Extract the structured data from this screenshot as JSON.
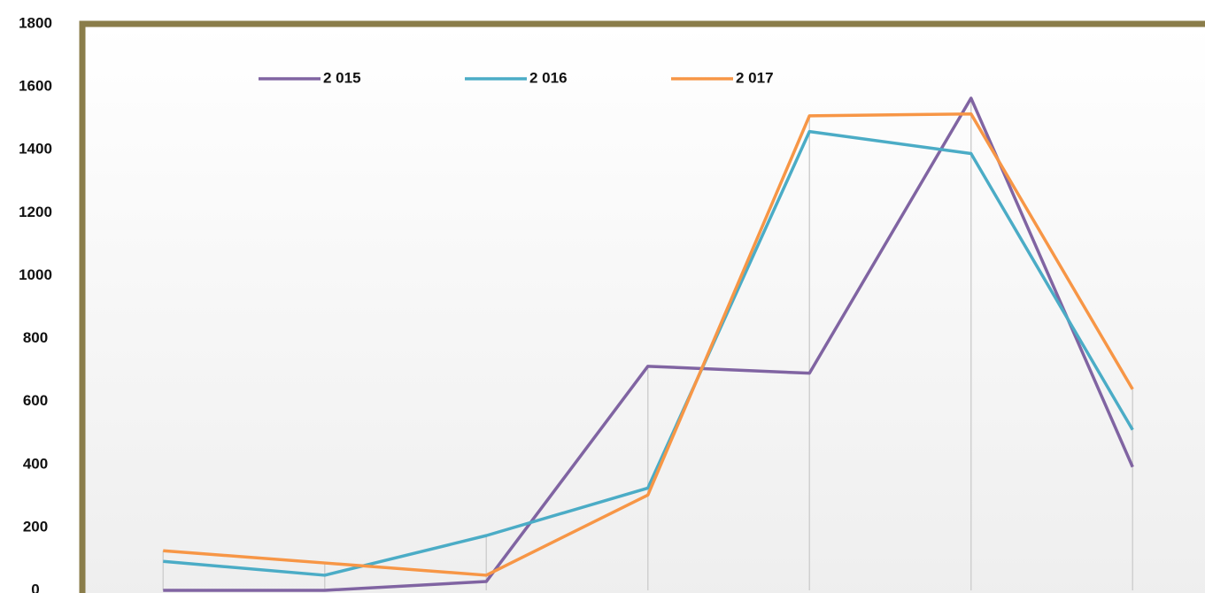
{
  "chart_data": {
    "type": "line",
    "categories": [
      null,
      null,
      null,
      null,
      null,
      null,
      null
    ],
    "series": [
      {
        "name": "2 015",
        "color": "#8064a2",
        "values": [
          0,
          0,
          28,
          712,
          690,
          1564,
          392
        ]
      },
      {
        "name": "2 016",
        "color": "#4bacc6",
        "values": [
          92,
          48,
          174,
          325,
          1458,
          1388,
          510
        ]
      },
      {
        "name": "2 017",
        "color": "#f79646",
        "values": [
          126,
          87,
          48,
          303,
          1508,
          1514,
          639
        ]
      }
    ],
    "ylim": [
      0,
      1800
    ],
    "yticks": [
      0,
      200,
      400,
      600,
      800,
      1000,
      1200,
      1400,
      1600,
      1800
    ],
    "frame_color": "#8a7d4a"
  }
}
